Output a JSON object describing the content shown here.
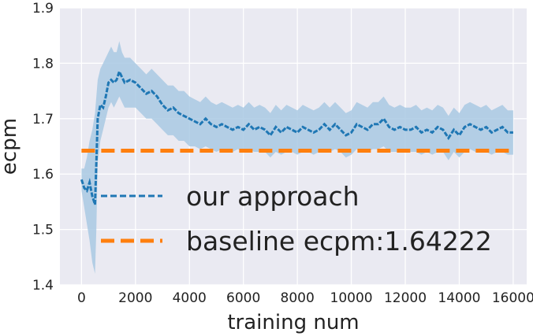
{
  "chart_data": {
    "type": "line",
    "xlabel": "training num",
    "ylabel": "ecpm",
    "xlim": [
      -800,
      16500
    ],
    "ylim": [
      1.4,
      1.9
    ],
    "xticks": [
      "0",
      "2000",
      "4000",
      "6000",
      "8000",
      "10000",
      "12000",
      "14000",
      "16000"
    ],
    "yticks": [
      "1.4",
      "1.5",
      "1.6",
      "1.7",
      "1.8",
      "1.9"
    ],
    "grid": true,
    "legend_position": "lower-center",
    "colors": {
      "background": "#eaeaf2",
      "grid": "#ffffff",
      "approach": "#1f77b4",
      "band": "#a9c9e3",
      "baseline": "#ff7f0e"
    },
    "series": [
      {
        "name": "our approach",
        "style": "dashed",
        "x": [
          0,
          100,
          200,
          300,
          400,
          500,
          550,
          600,
          700,
          800,
          900,
          1000,
          1100,
          1200,
          1300,
          1400,
          1500,
          1600,
          1800,
          2000,
          2200,
          2400,
          2600,
          2800,
          3000,
          3200,
          3400,
          3600,
          3800,
          4000,
          4200,
          4400,
          4600,
          4800,
          5000,
          5200,
          5400,
          5600,
          5800,
          6000,
          6200,
          6400,
          6600,
          6800,
          7000,
          7200,
          7400,
          7600,
          7800,
          8000,
          8200,
          8400,
          8600,
          8800,
          9000,
          9200,
          9400,
          9600,
          9800,
          10000,
          10200,
          10400,
          10600,
          10800,
          11000,
          11200,
          11400,
          11600,
          11800,
          12000,
          12200,
          12400,
          12600,
          12800,
          13000,
          13200,
          13400,
          13600,
          13800,
          14000,
          14200,
          14400,
          14600,
          14800,
          15000,
          15200,
          15400,
          15600,
          15800,
          16000
        ],
        "y": [
          1.59,
          1.575,
          1.57,
          1.585,
          1.56,
          1.545,
          1.62,
          1.7,
          1.725,
          1.72,
          1.74,
          1.765,
          1.77,
          1.765,
          1.77,
          1.785,
          1.775,
          1.765,
          1.77,
          1.765,
          1.755,
          1.745,
          1.75,
          1.74,
          1.725,
          1.715,
          1.72,
          1.71,
          1.705,
          1.7,
          1.695,
          1.69,
          1.7,
          1.69,
          1.685,
          1.69,
          1.685,
          1.68,
          1.685,
          1.68,
          1.69,
          1.68,
          1.685,
          1.68,
          1.67,
          1.685,
          1.675,
          1.685,
          1.68,
          1.675,
          1.685,
          1.68,
          1.675,
          1.68,
          1.69,
          1.68,
          1.69,
          1.68,
          1.67,
          1.675,
          1.69,
          1.685,
          1.68,
          1.69,
          1.69,
          1.7,
          1.685,
          1.68,
          1.685,
          1.68,
          1.68,
          1.685,
          1.675,
          1.68,
          1.675,
          1.685,
          1.68,
          1.665,
          1.68,
          1.67,
          1.685,
          1.69,
          1.685,
          1.68,
          1.685,
          1.675,
          1.68,
          1.685,
          1.675,
          1.675
        ],
        "y_lower": [
          1.57,
          1.54,
          1.51,
          1.48,
          1.44,
          1.42,
          1.5,
          1.62,
          1.66,
          1.68,
          1.7,
          1.72,
          1.73,
          1.72,
          1.73,
          1.74,
          1.73,
          1.72,
          1.72,
          1.72,
          1.71,
          1.7,
          1.7,
          1.69,
          1.68,
          1.67,
          1.67,
          1.66,
          1.66,
          1.65,
          1.65,
          1.645,
          1.65,
          1.645,
          1.64,
          1.645,
          1.64,
          1.64,
          1.645,
          1.64,
          1.645,
          1.64,
          1.64,
          1.64,
          1.63,
          1.64,
          1.635,
          1.64,
          1.64,
          1.635,
          1.64,
          1.64,
          1.635,
          1.64,
          1.645,
          1.64,
          1.645,
          1.64,
          1.63,
          1.635,
          1.645,
          1.64,
          1.64,
          1.645,
          1.645,
          1.65,
          1.64,
          1.64,
          1.64,
          1.64,
          1.64,
          1.64,
          1.635,
          1.64,
          1.635,
          1.64,
          1.64,
          1.625,
          1.64,
          1.63,
          1.64,
          1.645,
          1.64,
          1.64,
          1.64,
          1.635,
          1.64,
          1.64,
          1.635,
          1.635
        ],
        "y_upper": [
          1.61,
          1.61,
          1.63,
          1.66,
          1.68,
          1.71,
          1.74,
          1.77,
          1.79,
          1.8,
          1.81,
          1.82,
          1.83,
          1.82,
          1.82,
          1.84,
          1.82,
          1.81,
          1.81,
          1.8,
          1.79,
          1.78,
          1.79,
          1.78,
          1.77,
          1.76,
          1.76,
          1.75,
          1.75,
          1.74,
          1.735,
          1.73,
          1.74,
          1.73,
          1.725,
          1.73,
          1.725,
          1.72,
          1.725,
          1.72,
          1.73,
          1.72,
          1.725,
          1.72,
          1.71,
          1.725,
          1.715,
          1.725,
          1.72,
          1.715,
          1.725,
          1.72,
          1.715,
          1.72,
          1.73,
          1.72,
          1.73,
          1.72,
          1.71,
          1.715,
          1.73,
          1.725,
          1.72,
          1.73,
          1.73,
          1.74,
          1.725,
          1.72,
          1.725,
          1.72,
          1.72,
          1.725,
          1.715,
          1.72,
          1.715,
          1.725,
          1.72,
          1.705,
          1.72,
          1.71,
          1.725,
          1.73,
          1.725,
          1.72,
          1.725,
          1.715,
          1.72,
          1.725,
          1.715,
          1.715
        ]
      },
      {
        "name": "baseline ecpm:1.64222",
        "style": "dashed",
        "x": [
          0,
          16000
        ],
        "y": [
          1.64222,
          1.64222
        ]
      }
    ]
  }
}
